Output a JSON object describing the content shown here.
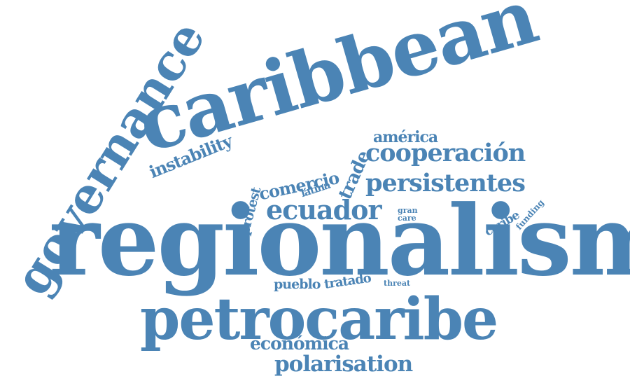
{
  "style": {
    "word_color": "#4b84b5",
    "background": "#ffffff"
  },
  "words": {
    "regionalism": "regionalism",
    "petrocaribe": "petrocaribe",
    "caribbean": "caribbean",
    "governance": "governance",
    "cooperacion": "cooperación",
    "persistentes": "persistentes",
    "ecuador": "ecuador",
    "polarisation": "polarisation",
    "economica": "económica",
    "comercio": "comercio",
    "instability": "instability",
    "america": "américa",
    "trade": "trade",
    "protest": "protest",
    "latina": "latina",
    "pueblo": "pueblo",
    "tratado": "tratado",
    "threat": "threat",
    "gran": "gran",
    "care": "care",
    "caribe": "caribe",
    "funding": "funding"
  }
}
